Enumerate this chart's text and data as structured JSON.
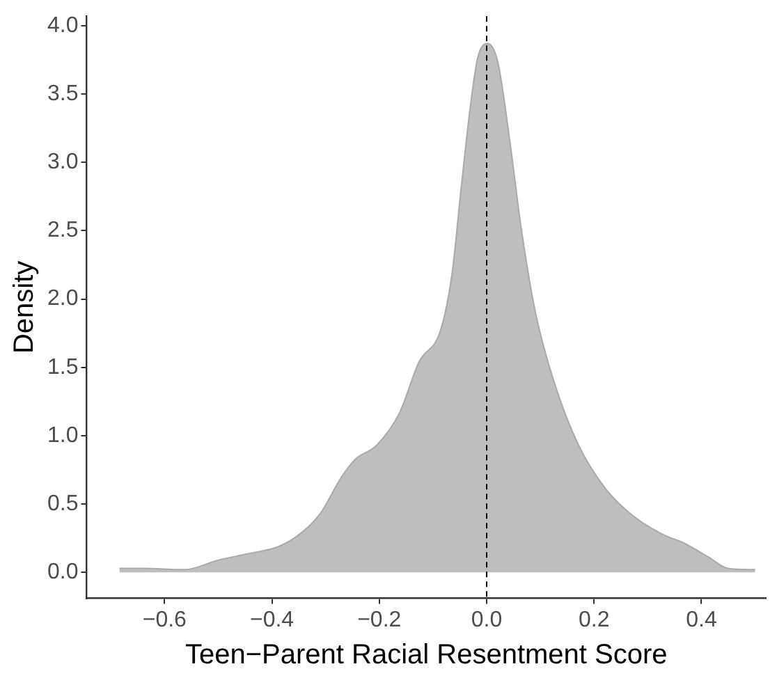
{
  "chart_data": {
    "type": "area",
    "xlabel": "Teen−Parent Racial Resentment Score",
    "ylabel": "Density",
    "x": [
      -0.684,
      -0.64,
      -0.562,
      -0.5,
      -0.44,
      -0.387,
      -0.345,
      -0.31,
      -0.27,
      -0.244,
      -0.205,
      -0.162,
      -0.126,
      -0.086,
      -0.065,
      -0.047,
      -0.031,
      -0.017,
      0.002,
      0.021,
      0.043,
      0.065,
      0.091,
      0.125,
      0.17,
      0.222,
      0.274,
      0.327,
      0.37,
      0.414,
      0.449,
      0.5
    ],
    "series": [
      {
        "color": "#bebebe",
        "values": [
          0.03,
          0.03,
          0.02,
          0.09,
          0.14,
          0.19,
          0.29,
          0.43,
          0.7,
          0.83,
          0.93,
          1.17,
          1.54,
          1.77,
          2.17,
          2.83,
          3.39,
          3.76,
          3.87,
          3.73,
          3.16,
          2.5,
          1.9,
          1.4,
          0.94,
          0.61,
          0.41,
          0.28,
          0.21,
          0.11,
          0.03,
          0.02
        ]
      }
    ],
    "xlim": [
      -0.745,
      0.52
    ],
    "ylim": [
      -0.19,
      4.07
    ],
    "xticks": [
      {
        "value": -0.6,
        "label": "−0.6"
      },
      {
        "value": -0.4,
        "label": "−0.4"
      },
      {
        "value": -0.2,
        "label": "−0.2"
      },
      {
        "value": 0,
        "label": "0.0"
      },
      {
        "value": 0.2,
        "label": "0.2"
      },
      {
        "value": 0.4,
        "label": "0.4"
      }
    ],
    "yticks": [
      {
        "value": 0,
        "label": "0.0"
      },
      {
        "value": 0.5,
        "label": "0.5"
      },
      {
        "value": 1,
        "label": "1.0"
      },
      {
        "value": 1.5,
        "label": "1.5"
      },
      {
        "value": 2,
        "label": "2.0"
      },
      {
        "value": 2.5,
        "label": "2.5"
      },
      {
        "value": 3,
        "label": "3.0"
      },
      {
        "value": 3.5,
        "label": "3.5"
      },
      {
        "value": 4,
        "label": "4.0"
      }
    ],
    "ref_lines": [
      {
        "axis": "x",
        "value": 0,
        "color": "#000000",
        "line_style": "dashed"
      }
    ],
    "grid": false,
    "legend": false,
    "marker": "none"
  }
}
